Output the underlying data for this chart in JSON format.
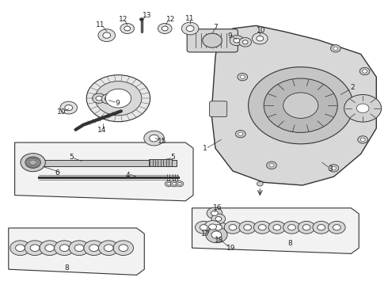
{
  "bg_color": "#ffffff",
  "line_color": "#333333",
  "text_color": "#222222",
  "label_fontsize": 6.5,
  "fig_width": 4.9,
  "fig_height": 3.6,
  "dpi": 100
}
